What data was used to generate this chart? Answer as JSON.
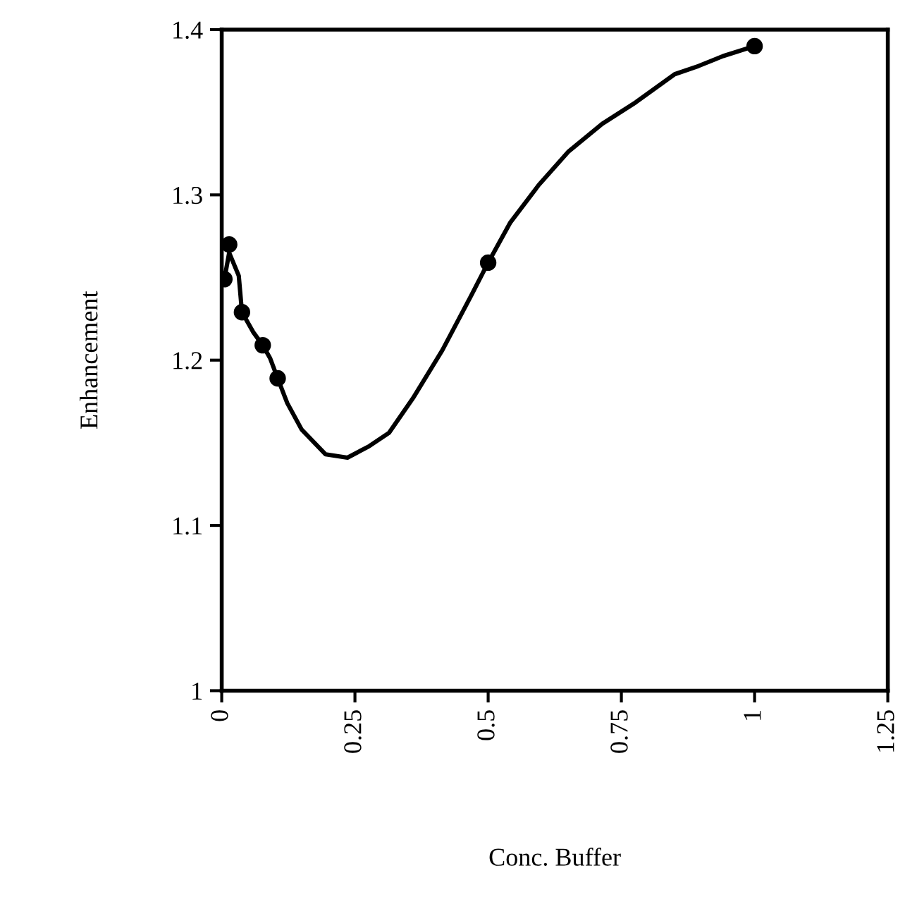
{
  "chart_data": {
    "type": "scatter",
    "xlabel": "Conc. Buffer",
    "ylabel": "Enhancement",
    "xlim": [
      0,
      1.25
    ],
    "ylim": [
      1,
      1.4
    ],
    "xticks": [
      0,
      0.25,
      0.5,
      0.75,
      1,
      1.25
    ],
    "yticks": [
      1,
      1.1,
      1.2,
      1.3,
      1.4
    ],
    "grid": false,
    "series": [
      {
        "color": "#000000",
        "marker": "circle",
        "x": [
          0.005,
          0.014,
          0.038,
          0.077,
          0.105,
          0.5,
          1.0
        ],
        "values": [
          1.249,
          1.27,
          1.229,
          1.209,
          1.189,
          1.259,
          1.39
        ]
      },
      {
        "type": "line",
        "color": "#000000",
        "line_style": "solid",
        "x": [
          0.005,
          0.014,
          0.032,
          0.038,
          0.059,
          0.077,
          0.091,
          0.105,
          0.123,
          0.15,
          0.195,
          0.236,
          0.277,
          0.314,
          0.359,
          0.414,
          0.468,
          0.5,
          0.541,
          0.595,
          0.65,
          0.714,
          0.777,
          0.85,
          0.895,
          0.941,
          1.0
        ],
        "values": [
          1.249,
          1.265,
          1.251,
          1.229,
          1.217,
          1.209,
          1.201,
          1.189,
          1.174,
          1.158,
          1.143,
          1.141,
          1.148,
          1.156,
          1.177,
          1.206,
          1.239,
          1.259,
          1.283,
          1.306,
          1.326,
          1.343,
          1.356,
          1.373,
          1.378,
          1.384,
          1.39
        ]
      }
    ]
  }
}
